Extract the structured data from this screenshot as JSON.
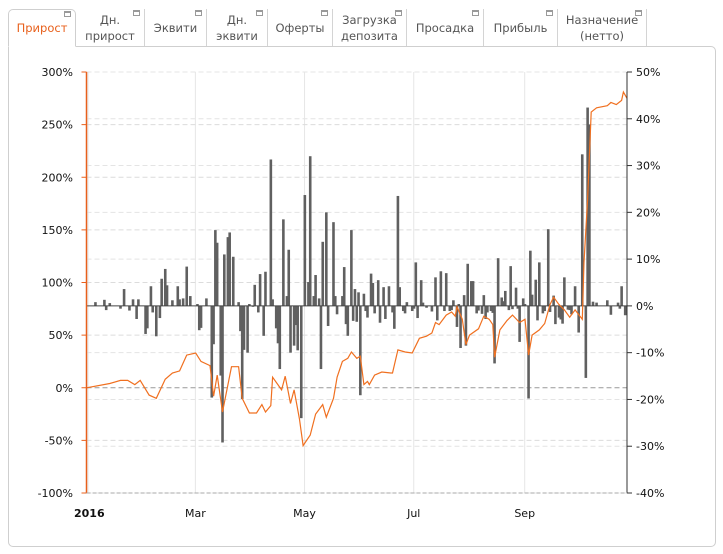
{
  "tabs": [
    {
      "label": "Прирост",
      "active": true
    },
    {
      "label": "Дн.\nприрост"
    },
    {
      "label": "Эквити"
    },
    {
      "label": "Дн.\nэквити"
    },
    {
      "label": "Оферты"
    },
    {
      "label": "Загрузка\nдепозита"
    },
    {
      "label": "Просадка"
    },
    {
      "label": "Прибыль"
    },
    {
      "label": "Назначение\n(нетто)"
    }
  ],
  "colors": {
    "accent": "#e8601c",
    "line": "#f07020",
    "bars": "#606060"
  },
  "chart_data": {
    "type": "bar+line",
    "xlim": [
      "2016-01-01",
      "2016-10-29"
    ],
    "x_ticks": [
      {
        "date": "2016-01-01",
        "label": "2016",
        "bold": true
      },
      {
        "date": "2016-03-01",
        "label": "Mar"
      },
      {
        "date": "2016-05-01",
        "label": "May"
      },
      {
        "date": "2016-07-01",
        "label": "Jul"
      },
      {
        "date": "2016-09-01",
        "label": "Sep"
      }
    ],
    "left_axis": {
      "ylim": [
        -100,
        300
      ],
      "ticks": [
        "-100%",
        "-50%",
        "0%",
        "50%",
        "100%",
        "150%",
        "200%",
        "250%",
        "300%"
      ],
      "values": [
        -100,
        -50,
        0,
        50,
        100,
        150,
        200,
        250,
        300
      ]
    },
    "right_axis": {
      "ylim": [
        -40,
        50
      ],
      "ticks": [
        "-40%",
        "-30%",
        "-20%",
        "-10%",
        "0%",
        "10%",
        "20%",
        "30%",
        "40%",
        "50%"
      ],
      "values": [
        -40,
        -30,
        -20,
        -10,
        0,
        10,
        20,
        30,
        40,
        50
      ]
    },
    "grid": true,
    "line_series": [
      [
        "2016-01-01",
        0
      ],
      [
        "2016-01-14",
        4
      ],
      [
        "2016-01-20",
        7
      ],
      [
        "2016-01-24",
        7
      ],
      [
        "2016-01-28",
        3
      ],
      [
        "2016-01-31",
        7
      ],
      [
        "2016-02-05",
        -7
      ],
      [
        "2016-02-09",
        -10
      ],
      [
        "2016-02-14",
        8
      ],
      [
        "2016-02-18",
        14
      ],
      [
        "2016-02-22",
        16
      ],
      [
        "2016-02-26",
        31
      ],
      [
        "2016-03-02",
        33
      ],
      [
        "2016-03-05",
        25
      ],
      [
        "2016-03-10",
        21
      ],
      [
        "2016-03-12",
        -8
      ],
      [
        "2016-03-14",
        12
      ],
      [
        "2016-03-17",
        -23
      ],
      [
        "2016-03-22",
        20
      ],
      [
        "2016-03-26",
        20
      ],
      [
        "2016-03-28",
        -10
      ],
      [
        "2016-04-01",
        -24
      ],
      [
        "2016-04-05",
        -24
      ],
      [
        "2016-04-08",
        -16
      ],
      [
        "2016-04-10",
        -23
      ],
      [
        "2016-04-13",
        -17
      ],
      [
        "2016-04-14",
        10
      ],
      [
        "2016-04-19",
        -2
      ],
      [
        "2016-04-21",
        11
      ],
      [
        "2016-04-24",
        -15
      ],
      [
        "2016-04-26",
        -2
      ],
      [
        "2016-04-29",
        -30
      ],
      [
        "2016-05-01",
        -55
      ],
      [
        "2016-05-05",
        -45
      ],
      [
        "2016-05-08",
        -25
      ],
      [
        "2016-05-12",
        -16
      ],
      [
        "2016-05-14",
        -28
      ],
      [
        "2016-05-18",
        -10
      ],
      [
        "2016-05-20",
        10
      ],
      [
        "2016-05-23",
        25
      ],
      [
        "2016-05-26",
        28
      ],
      [
        "2016-05-28",
        34
      ],
      [
        "2016-05-31",
        28
      ],
      [
        "2016-06-02",
        30
      ],
      [
        "2016-06-04",
        3
      ],
      [
        "2016-06-06",
        6
      ],
      [
        "2016-06-07",
        3
      ],
      [
        "2016-06-10",
        12
      ],
      [
        "2016-06-14",
        15
      ],
      [
        "2016-06-19",
        14
      ],
      [
        "2016-06-20",
        14
      ],
      [
        "2016-06-23",
        36
      ],
      [
        "2016-06-27",
        34
      ],
      [
        "2016-07-01",
        33
      ],
      [
        "2016-07-05",
        47
      ],
      [
        "2016-07-09",
        49
      ],
      [
        "2016-07-12",
        52
      ],
      [
        "2016-07-14",
        62
      ],
      [
        "2016-07-16",
        60
      ],
      [
        "2016-07-20",
        69
      ],
      [
        "2016-07-23",
        72
      ],
      [
        "2016-07-25",
        68
      ],
      [
        "2016-07-26",
        77
      ],
      [
        "2016-07-29",
        65
      ],
      [
        "2016-07-31",
        41
      ],
      [
        "2016-08-02",
        50
      ],
      [
        "2016-08-07",
        56
      ],
      [
        "2016-08-10",
        68
      ],
      [
        "2016-08-13",
        65
      ],
      [
        "2016-08-15",
        60
      ],
      [
        "2016-08-16",
        29
      ],
      [
        "2016-08-19",
        55
      ],
      [
        "2016-08-23",
        64
      ],
      [
        "2016-08-26",
        69
      ],
      [
        "2016-08-30",
        62
      ],
      [
        "2016-09-02",
        65
      ],
      [
        "2016-09-04",
        31
      ],
      [
        "2016-09-06",
        50
      ],
      [
        "2016-09-10",
        55
      ],
      [
        "2016-09-13",
        61
      ],
      [
        "2016-09-16",
        79
      ],
      [
        "2016-09-18",
        86
      ],
      [
        "2016-09-21",
        79
      ],
      [
        "2016-09-24",
        74
      ],
      [
        "2016-09-27",
        67
      ],
      [
        "2016-09-30",
        74
      ],
      [
        "2016-10-04",
        65
      ],
      [
        "2016-10-05",
        119
      ],
      [
        "2016-10-07",
        179
      ],
      [
        "2016-10-09",
        262
      ],
      [
        "2016-10-12",
        266
      ],
      [
        "2016-10-18",
        268
      ],
      [
        "2016-10-20",
        271
      ],
      [
        "2016-10-23",
        269
      ],
      [
        "2016-10-26",
        273
      ],
      [
        "2016-10-27",
        281
      ],
      [
        "2016-10-29",
        275
      ]
    ],
    "bar_series": [
      [
        "2016-01-06",
        0.8
      ],
      [
        "2016-01-11",
        1.3
      ],
      [
        "2016-01-12",
        -0.9
      ],
      [
        "2016-01-14",
        0.6
      ],
      [
        "2016-01-20",
        -0.6
      ],
      [
        "2016-01-22",
        3.6
      ],
      [
        "2016-01-25",
        -1
      ],
      [
        "2016-01-27",
        1.4
      ],
      [
        "2016-01-29",
        -2.8
      ],
      [
        "2016-01-30",
        1.4
      ],
      [
        "2016-02-03",
        -6
      ],
      [
        "2016-02-04",
        -4.8
      ],
      [
        "2016-02-06",
        4.2
      ],
      [
        "2016-02-07",
        -1.4
      ],
      [
        "2016-02-09",
        -6.5
      ],
      [
        "2016-02-11",
        -2.6
      ],
      [
        "2016-02-12",
        5.8
      ],
      [
        "2016-02-14",
        7.9
      ],
      [
        "2016-02-15",
        4.4
      ],
      [
        "2016-02-18",
        1.2
      ],
      [
        "2016-02-21",
        4.2
      ],
      [
        "2016-02-22",
        1.4
      ],
      [
        "2016-02-24",
        1.6
      ],
      [
        "2016-02-26",
        8.4
      ],
      [
        "2016-02-28",
        2.1
      ],
      [
        "2016-03-03",
        0.4
      ],
      [
        "2016-03-04",
        -5.2
      ],
      [
        "2016-03-05",
        -4.7
      ],
      [
        "2016-03-08",
        1.6
      ],
      [
        "2016-03-11",
        -19.6
      ],
      [
        "2016-03-12",
        -8.2
      ],
      [
        "2016-03-13",
        16.2
      ],
      [
        "2016-03-14",
        13.5
      ],
      [
        "2016-03-16",
        -14.9
      ],
      [
        "2016-03-17",
        -29.2
      ],
      [
        "2016-03-18",
        11
      ],
      [
        "2016-03-20",
        14.7
      ],
      [
        "2016-03-21",
        15.7
      ],
      [
        "2016-03-23",
        10.5
      ],
      [
        "2016-03-26",
        0.8
      ],
      [
        "2016-03-27",
        -5.4
      ],
      [
        "2016-03-28",
        -19.9
      ],
      [
        "2016-03-29",
        -9.4
      ],
      [
        "2016-03-31",
        -10
      ],
      [
        "2016-04-01",
        0.4
      ],
      [
        "2016-04-03",
        -0.2
      ],
      [
        "2016-04-04",
        4.5
      ],
      [
        "2016-04-06",
        -1.4
      ],
      [
        "2016-04-07",
        6.8
      ],
      [
        "2016-04-09",
        -6.4
      ],
      [
        "2016-04-10",
        7.3
      ],
      [
        "2016-04-13",
        31.3
      ],
      [
        "2016-04-14",
        1.4
      ],
      [
        "2016-04-16",
        -4.8
      ],
      [
        "2016-04-17",
        -8
      ],
      [
        "2016-04-18",
        -13.5
      ],
      [
        "2016-04-20",
        18.5
      ],
      [
        "2016-04-22",
        2.1
      ],
      [
        "2016-04-23",
        12
      ],
      [
        "2016-04-24",
        -10
      ],
      [
        "2016-04-26",
        -8.5
      ],
      [
        "2016-04-27",
        -4.1
      ],
      [
        "2016-04-28",
        -9.5
      ],
      [
        "2016-04-30",
        -24
      ],
      [
        "2016-05-02",
        23.7
      ],
      [
        "2016-05-04",
        5.1
      ],
      [
        "2016-05-05",
        32
      ],
      [
        "2016-05-07",
        2.1
      ],
      [
        "2016-05-08",
        6.6
      ],
      [
        "2016-05-10",
        1.6
      ],
      [
        "2016-05-11",
        -13.5
      ],
      [
        "2016-05-12",
        13.7
      ],
      [
        "2016-05-14",
        20
      ],
      [
        "2016-05-15",
        -4.3
      ],
      [
        "2016-05-18",
        17.9
      ],
      [
        "2016-05-19",
        2.1
      ],
      [
        "2016-05-20",
        -1.8
      ],
      [
        "2016-05-23",
        2.1
      ],
      [
        "2016-05-24",
        8.3
      ],
      [
        "2016-05-25",
        -3.9
      ],
      [
        "2016-05-26",
        -6.4
      ],
      [
        "2016-05-28",
        16.2
      ],
      [
        "2016-05-29",
        -3.2
      ],
      [
        "2016-05-30",
        3.6
      ],
      [
        "2016-05-31",
        -3.4
      ],
      [
        "2016-06-01",
        2.9
      ],
      [
        "2016-06-02",
        -19.1
      ],
      [
        "2016-06-04",
        2.6
      ],
      [
        "2016-06-05",
        -1.1
      ],
      [
        "2016-06-06",
        -2.5
      ],
      [
        "2016-06-08",
        6.9
      ],
      [
        "2016-06-09",
        4.9
      ],
      [
        "2016-06-10",
        -1.6
      ],
      [
        "2016-06-12",
        5.5
      ],
      [
        "2016-06-13",
        -3.6
      ],
      [
        "2016-06-15",
        4
      ],
      [
        "2016-06-16",
        -2.8
      ],
      [
        "2016-06-18",
        4.2
      ],
      [
        "2016-06-20",
        -1.4
      ],
      [
        "2016-06-21",
        -4.9
      ],
      [
        "2016-06-23",
        23.5
      ],
      [
        "2016-06-24",
        4
      ],
      [
        "2016-06-26",
        -1.1
      ],
      [
        "2016-06-27",
        -1.6
      ],
      [
        "2016-06-28",
        0.8
      ],
      [
        "2016-07-01",
        -1.1
      ],
      [
        "2016-07-02",
        -0.6
      ],
      [
        "2016-07-03",
        9.3
      ],
      [
        "2016-07-04",
        -2.6
      ],
      [
        "2016-07-06",
        5.5
      ],
      [
        "2016-07-07",
        0.7
      ],
      [
        "2016-07-09",
        -0.4
      ],
      [
        "2016-07-12",
        -1.2
      ],
      [
        "2016-07-14",
        6.1
      ],
      [
        "2016-07-15",
        -3.1
      ],
      [
        "2016-07-17",
        7.4
      ],
      [
        "2016-07-19",
        -1.1
      ],
      [
        "2016-07-20",
        7
      ],
      [
        "2016-07-22",
        -1.1
      ],
      [
        "2016-07-23",
        -0.9
      ],
      [
        "2016-07-24",
        1.2
      ],
      [
        "2016-07-26",
        -4.5
      ],
      [
        "2016-07-27",
        0.4
      ],
      [
        "2016-07-28",
        -9
      ],
      [
        "2016-07-30",
        2.3
      ],
      [
        "2016-07-31",
        -8.5
      ],
      [
        "2016-08-01",
        9
      ],
      [
        "2016-08-03",
        5.3
      ],
      [
        "2016-08-04",
        5.3
      ],
      [
        "2016-08-06",
        -1.6
      ],
      [
        "2016-08-07",
        -1
      ],
      [
        "2016-08-09",
        -1.7
      ],
      [
        "2016-08-10",
        2.3
      ],
      [
        "2016-08-11",
        -2.8
      ],
      [
        "2016-08-12",
        -1.4
      ],
      [
        "2016-08-14",
        -1.1
      ],
      [
        "2016-08-15",
        -1.5
      ],
      [
        "2016-08-16",
        -12.3
      ],
      [
        "2016-08-18",
        10.2
      ],
      [
        "2016-08-20",
        1.8
      ],
      [
        "2016-08-21",
        1
      ],
      [
        "2016-08-22",
        3.2
      ],
      [
        "2016-08-24",
        -0.9
      ],
      [
        "2016-08-25",
        8.5
      ],
      [
        "2016-08-26",
        -0.7
      ],
      [
        "2016-08-28",
        3.9
      ],
      [
        "2016-08-29",
        -0.6
      ],
      [
        "2016-08-30",
        -7.7
      ],
      [
        "2016-09-01",
        1.6
      ],
      [
        "2016-09-02",
        0.4
      ],
      [
        "2016-09-04",
        -19.8
      ],
      [
        "2016-09-05",
        11.8
      ],
      [
        "2016-09-06",
        2.4
      ],
      [
        "2016-09-08",
        5.6
      ],
      [
        "2016-09-09",
        -3.1
      ],
      [
        "2016-09-10",
        9.3
      ],
      [
        "2016-09-12",
        -1.6
      ],
      [
        "2016-09-13",
        -1.1
      ],
      [
        "2016-09-15",
        16.4
      ],
      [
        "2016-09-16",
        -1.3
      ],
      [
        "2016-09-18",
        2.2
      ],
      [
        "2016-09-19",
        -3.9
      ],
      [
        "2016-09-21",
        -2.5
      ],
      [
        "2016-09-22",
        -2.9
      ],
      [
        "2016-09-23",
        -3.8
      ],
      [
        "2016-09-24",
        6.1
      ],
      [
        "2016-09-26",
        -0.8
      ],
      [
        "2016-09-27",
        -0.9
      ],
      [
        "2016-09-28",
        -1.8
      ],
      [
        "2016-09-30",
        4.2
      ],
      [
        "2016-10-02",
        -5.7
      ],
      [
        "2016-10-04",
        32.4
      ],
      [
        "2016-10-06",
        -15.4
      ],
      [
        "2016-10-07",
        42.4
      ],
      [
        "2016-10-08",
        38.8
      ],
      [
        "2016-10-10",
        0.9
      ],
      [
        "2016-10-12",
        0.7
      ],
      [
        "2016-10-18",
        1.2
      ],
      [
        "2016-10-20",
        -1.9
      ],
      [
        "2016-10-24",
        0.7
      ],
      [
        "2016-10-25",
        -0.6
      ],
      [
        "2016-10-26",
        4.2
      ],
      [
        "2016-10-28",
        -2
      ]
    ]
  }
}
